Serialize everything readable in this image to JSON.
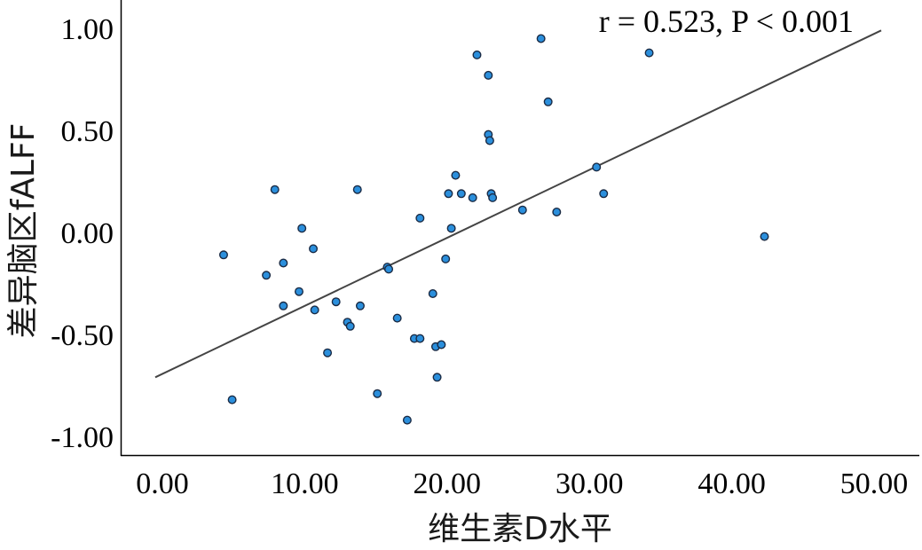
{
  "chart_data": {
    "type": "scatter",
    "annotation": "r = 0.523, P < 0.001",
    "xlabel": "维生素D水平",
    "ylabel": "差异脑区fALFF",
    "xlim": [
      -0.5,
      50.5
    ],
    "ylim": [
      -1.1,
      1.12
    ],
    "x_ticks": [
      0,
      10,
      20,
      30,
      40,
      50
    ],
    "x_tick_labels": [
      "0.00",
      "10.00",
      "20.00",
      "30.00",
      "40.00",
      "50.00"
    ],
    "y_ticks": [
      1,
      0.5,
      0,
      -0.5,
      -1
    ],
    "y_tick_labels": [
      "1.00",
      "0.50",
      "0.00",
      "-0.50",
      "-1.00"
    ],
    "grid": false,
    "point_color": "#2b8fdc",
    "point_edge_color": "#1a2b45",
    "line_color": "#444444",
    "fit_line": {
      "x": [
        -0.5,
        50.5
      ],
      "y": [
        -0.71,
        0.99
      ]
    },
    "points": [
      {
        "x": 4.3,
        "y": -0.11
      },
      {
        "x": 4.9,
        "y": -0.82
      },
      {
        "x": 7.3,
        "y": -0.21
      },
      {
        "x": 7.9,
        "y": 0.21
      },
      {
        "x": 8.5,
        "y": -0.15
      },
      {
        "x": 8.5,
        "y": -0.36
      },
      {
        "x": 9.6,
        "y": -0.29
      },
      {
        "x": 9.8,
        "y": 0.02
      },
      {
        "x": 10.6,
        "y": -0.08
      },
      {
        "x": 10.7,
        "y": -0.38
      },
      {
        "x": 11.6,
        "y": -0.59
      },
      {
        "x": 12.2,
        "y": -0.34
      },
      {
        "x": 13.0,
        "y": -0.44
      },
      {
        "x": 13.2,
        "y": -0.46
      },
      {
        "x": 13.7,
        "y": 0.21
      },
      {
        "x": 13.9,
        "y": -0.36
      },
      {
        "x": 15.1,
        "y": -0.79
      },
      {
        "x": 15.8,
        "y": -0.17
      },
      {
        "x": 15.9,
        "y": -0.18
      },
      {
        "x": 16.5,
        "y": -0.42
      },
      {
        "x": 17.2,
        "y": -0.92
      },
      {
        "x": 17.7,
        "y": -0.52
      },
      {
        "x": 18.1,
        "y": -0.52
      },
      {
        "x": 18.1,
        "y": 0.07
      },
      {
        "x": 19.0,
        "y": -0.3
      },
      {
        "x": 19.2,
        "y": -0.56
      },
      {
        "x": 19.3,
        "y": -0.71
      },
      {
        "x": 19.6,
        "y": -0.55
      },
      {
        "x": 19.9,
        "y": -0.13
      },
      {
        "x": 20.1,
        "y": 0.19
      },
      {
        "x": 20.3,
        "y": 0.02
      },
      {
        "x": 20.6,
        "y": 0.28
      },
      {
        "x": 21.0,
        "y": 0.19
      },
      {
        "x": 21.8,
        "y": 0.17
      },
      {
        "x": 22.1,
        "y": 0.87
      },
      {
        "x": 22.9,
        "y": 0.77
      },
      {
        "x": 22.9,
        "y": 0.48
      },
      {
        "x": 23.0,
        "y": 0.45
      },
      {
        "x": 23.1,
        "y": 0.19
      },
      {
        "x": 23.2,
        "y": 0.17
      },
      {
        "x": 25.3,
        "y": 0.11
      },
      {
        "x": 26.6,
        "y": 0.95
      },
      {
        "x": 27.1,
        "y": 0.64
      },
      {
        "x": 27.7,
        "y": 0.1
      },
      {
        "x": 30.5,
        "y": 0.32
      },
      {
        "x": 31.0,
        "y": 0.19
      },
      {
        "x": 34.2,
        "y": 0.88
      },
      {
        "x": 42.3,
        "y": -0.02
      }
    ]
  }
}
